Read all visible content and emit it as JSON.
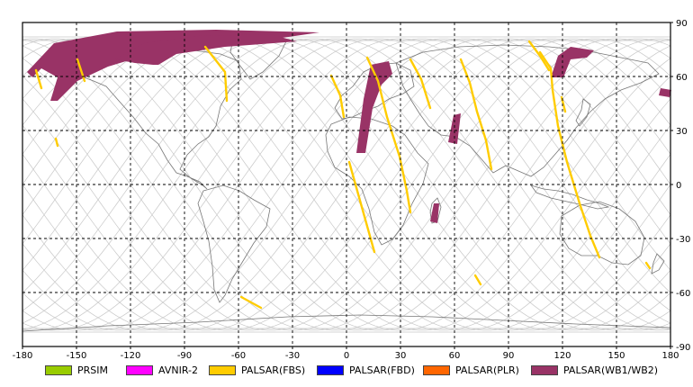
{
  "map": {
    "lon_ticks": [
      "-180",
      "-150",
      "-120",
      "-90",
      "-60",
      "-30",
      "0",
      "30",
      "60",
      "90",
      "120",
      "150",
      "180"
    ],
    "lat_ticks_right": [
      "90",
      "60",
      "30",
      "0",
      "-30",
      "-60",
      "-90"
    ],
    "colors": {
      "frame": "#000000",
      "grid": "#000000",
      "coast": "#777777",
      "orbit": "#c8c8c8",
      "fbs": "#ffcc00",
      "wb": "#993366"
    }
  },
  "legend": {
    "items": [
      {
        "label": "PRSIM",
        "color": "#99cc00"
      },
      {
        "label": "AVNIR-2",
        "color": "#ff00ff"
      },
      {
        "label": "PALSAR(FBS)",
        "color": "#ffcc00"
      },
      {
        "label": "PALSAR(FBD)",
        "color": "#0000ff"
      },
      {
        "label": "PALSAR(PLR)",
        "color": "#ff6600"
      },
      {
        "label": "PALSAR(WB1/WB2)",
        "color": "#993366"
      }
    ]
  }
}
